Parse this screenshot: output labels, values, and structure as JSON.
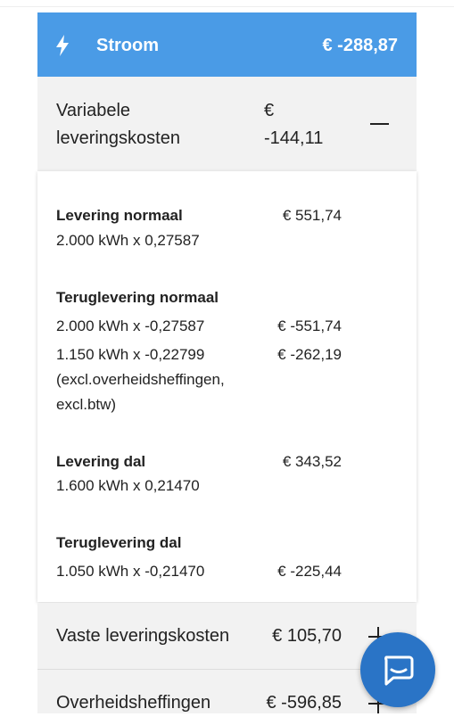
{
  "header": {
    "title": "Stroom",
    "amount": "€ -288,87"
  },
  "sections": [
    {
      "label": "Variabele leveringskosten",
      "amount": "€ -144,11",
      "details": [
        {
          "title": "Levering normaal",
          "amount": "€ 551,74",
          "lines": [
            {
              "text": "2.000 kWh x 0,27587"
            }
          ]
        },
        {
          "title": "Teruglevering normaal",
          "lines": [
            {
              "text": "2.000 kWh x -0,27587",
              "amount": "€ -551,74"
            },
            {
              "text": "1.150 kWh x -0,22799",
              "amount": "€ -262,19",
              "note": "(excl.overheidsheffingen, excl.btw)"
            }
          ]
        },
        {
          "title": "Levering dal",
          "amount": "€ 343,52",
          "lines": [
            {
              "text": "1.600 kWh x 0,21470"
            }
          ]
        },
        {
          "title": "Teruglevering dal",
          "lines": [
            {
              "text": "1.050 kWh x -0,21470",
              "amount": "€ -225,44"
            }
          ]
        }
      ]
    },
    {
      "label": "Vaste leveringskosten",
      "amount": "€ 105,70"
    },
    {
      "label": "Overheidsheffingen",
      "amount": "€ -596,85"
    }
  ]
}
